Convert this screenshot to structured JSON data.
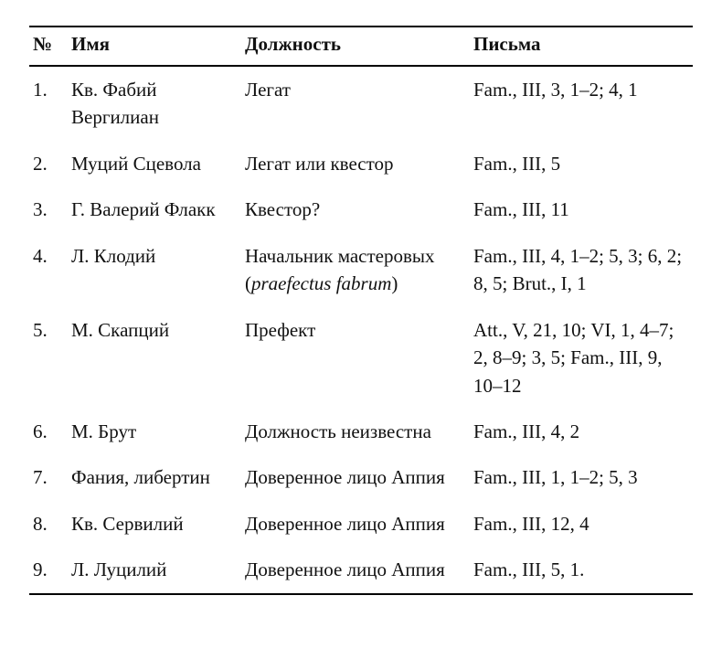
{
  "table": {
    "headers": {
      "num": "№",
      "name": "Имя",
      "position": "Должность",
      "letters": "Письма"
    },
    "rows": [
      {
        "num": "1.",
        "name": "Кв. Фабий Вергилиан",
        "position": "Легат",
        "letters": "Fam., III, 3, 1–2; 4, 1"
      },
      {
        "num": "2.",
        "name": "Муций Сцевола",
        "position": "Легат или квестор",
        "letters": "Fam., III, 5"
      },
      {
        "num": "3.",
        "name": "Г. Валерий Флакк",
        "position": "Квестор?",
        "letters": "Fam., III, 11"
      },
      {
        "num": "4.",
        "name": "Л. Клодий",
        "position_prefix": "Начальник мастеровых (",
        "position_italic": "praefectus fabrum",
        "position_suffix": ")",
        "letters": "Fam., III, 4, 1–2; 5, 3; 6, 2; 8, 5; Brut., I, 1"
      },
      {
        "num": "5.",
        "name": "М. Скапций",
        "position": "Префект",
        "letters": "Att., V, 21, 10; VI, 1, 4–7; 2, 8–9; 3, 5; Fam., III, 9, 10–12"
      },
      {
        "num": "6.",
        "name": "М. Брут",
        "position": "Должность неизвестна",
        "letters": "Fam., III, 4, 2"
      },
      {
        "num": "7.",
        "name": "Фания, либертин",
        "position": "Доверенное лицо Аппия",
        "letters": "Fam., III, 1, 1–2; 5, 3"
      },
      {
        "num": "8.",
        "name": "Кв. Сервилий",
        "position": "Доверенное лицо Аппия",
        "letters": "Fam., III, 12, 4"
      },
      {
        "num": "9.",
        "name": "Л. Луцилий",
        "position": "Доверенное лицо Аппия",
        "letters": "Fam., III, 5, 1."
      }
    ]
  }
}
